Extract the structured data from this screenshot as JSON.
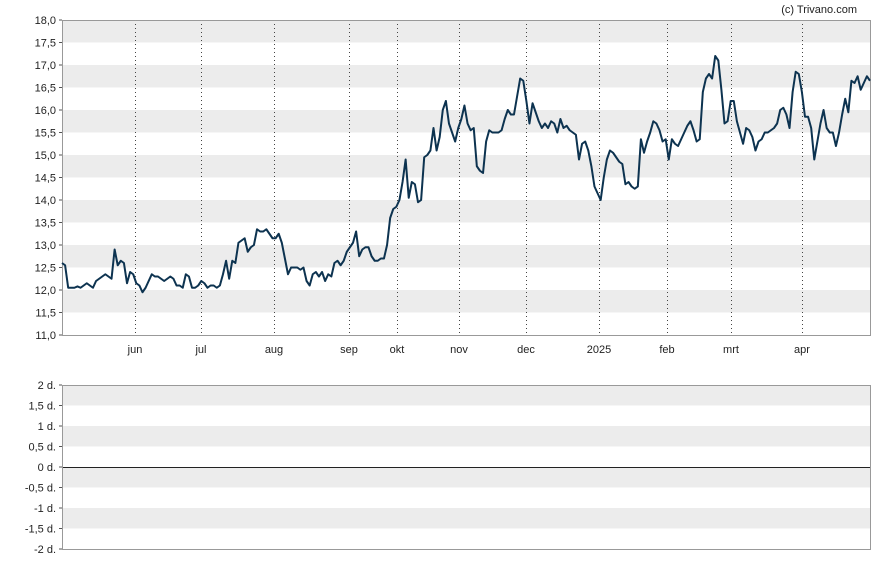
{
  "credit": "(c) Trivano.com",
  "chart_data": [
    {
      "type": "line",
      "y_ticks": [
        "11,0",
        "11,5",
        "12,0",
        "12,5",
        "13,0",
        "13,5",
        "14,0",
        "14,5",
        "15,0",
        "15,5",
        "16,0",
        "16,5",
        "17,0",
        "17,5",
        "18,0"
      ],
      "ylim": [
        11.0,
        18.0
      ],
      "x_ticks": [
        "jun",
        "jul",
        "aug",
        "sep",
        "okt",
        "nov",
        "dec",
        "2025",
        "feb",
        "mrt",
        "apr"
      ],
      "vertical_grid": "dotted at month boundaries",
      "horizontal_bands": "alternating light grey",
      "series": [
        {
          "color": "#0d3350",
          "values": [
            12.6,
            12.55,
            12.05,
            12.05,
            12.05,
            12.08,
            12.05,
            12.1,
            12.15,
            12.1,
            12.05,
            12.2,
            12.25,
            12.3,
            12.35,
            12.3,
            12.25,
            12.9,
            12.55,
            12.65,
            12.6,
            12.15,
            12.4,
            12.35,
            12.15,
            12.1,
            11.95,
            12.05,
            12.2,
            12.35,
            12.3,
            12.3,
            12.25,
            12.2,
            12.25,
            12.3,
            12.25,
            12.1,
            12.1,
            12.05,
            12.35,
            12.3,
            12.05,
            12.05,
            12.1,
            12.2,
            12.15,
            12.05,
            12.1,
            12.1,
            12.05,
            12.1,
            12.35,
            12.65,
            12.25,
            12.65,
            12.6,
            13.05,
            13.1,
            13.15,
            12.85,
            12.95,
            13.0,
            13.35,
            13.3,
            13.3,
            13.35,
            13.25,
            13.15,
            13.15,
            13.25,
            13.05,
            12.7,
            12.35,
            12.5,
            12.5,
            12.5,
            12.45,
            12.5,
            12.2,
            12.1,
            12.35,
            12.4,
            12.3,
            12.4,
            12.2,
            12.35,
            12.3,
            12.6,
            12.65,
            12.55,
            12.65,
            12.85,
            12.95,
            13.05,
            13.3,
            12.75,
            12.9,
            12.95,
            12.95,
            12.75,
            12.65,
            12.65,
            12.7,
            12.7,
            13.0,
            13.6,
            13.8,
            13.85,
            14.0,
            14.4,
            14.9,
            14.05,
            14.4,
            14.35,
            13.95,
            14.0,
            14.95,
            15.0,
            15.1,
            15.6,
            15.1,
            15.4,
            16.0,
            16.2,
            15.7,
            15.5,
            15.3,
            15.6,
            15.8,
            16.1,
            15.7,
            15.55,
            15.6,
            14.75,
            14.65,
            14.6,
            15.3,
            15.55,
            15.5,
            15.5,
            15.5,
            15.55,
            15.8,
            16.0,
            15.9,
            15.9,
            16.3,
            16.7,
            16.65,
            16.2,
            15.7,
            16.15,
            15.95,
            15.75,
            15.6,
            15.7,
            15.6,
            15.75,
            15.7,
            15.5,
            15.8,
            15.6,
            15.65,
            15.55,
            15.5,
            15.45,
            14.9,
            15.25,
            15.3,
            15.1,
            14.75,
            14.3,
            14.15,
            14.0,
            14.5,
            14.9,
            15.1,
            15.05,
            14.95,
            14.85,
            14.8,
            14.35,
            14.4,
            14.3,
            14.25,
            14.3,
            15.35,
            15.05,
            15.3,
            15.5,
            15.75,
            15.7,
            15.55,
            15.3,
            15.35,
            14.9,
            15.35,
            15.25,
            15.2,
            15.35,
            15.5,
            15.65,
            15.75,
            15.55,
            15.3,
            15.35,
            16.4,
            16.7,
            16.8,
            16.7,
            17.2,
            17.1,
            16.45,
            15.7,
            15.75,
            16.2,
            16.2,
            15.75,
            15.5,
            15.25,
            15.6,
            15.55,
            15.4,
            15.1,
            15.3,
            15.35,
            15.5,
            15.5,
            15.55,
            15.6,
            15.7,
            16.0,
            16.05,
            15.9,
            15.6,
            16.4,
            16.85,
            16.8,
            16.4,
            15.85,
            15.85,
            15.6,
            14.9,
            15.3,
            15.7,
            16.0,
            15.6,
            15.5,
            15.5,
            15.2,
            15.5,
            15.9,
            16.25,
            15.95,
            16.65,
            16.6,
            16.75,
            16.45,
            16.6,
            16.75,
            16.65
          ]
        }
      ]
    },
    {
      "type": "bar",
      "y_ticks": [
        "2 d.",
        "1,5 d.",
        "1 d.",
        "0,5 d.",
        "0 d.",
        "-0,5 d.",
        "-1 d.",
        "-1,5 d.",
        "-2 d."
      ],
      "ylim": [
        -2,
        2
      ],
      "horizontal_bands": "alternating light grey",
      "values": []
    }
  ]
}
